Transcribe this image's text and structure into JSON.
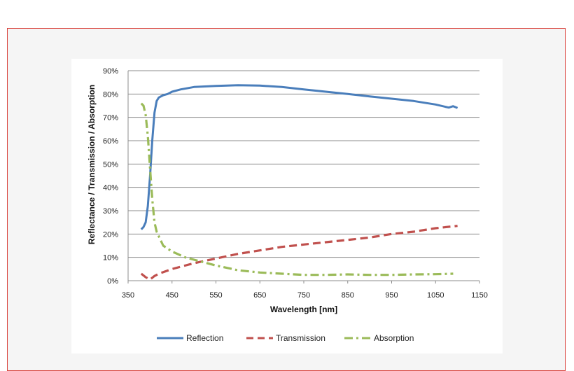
{
  "chart_data": {
    "type": "line",
    "title": "",
    "xlabel": "Wavelength [nm]",
    "ylabel": "Reflectance / Transmission / Absorption",
    "xlim": [
      350,
      1150
    ],
    "ylim": [
      0,
      90
    ],
    "xticks": [
      350,
      450,
      550,
      650,
      750,
      850,
      950,
      1050,
      1150
    ],
    "yticks": [
      0,
      10,
      20,
      30,
      40,
      50,
      60,
      70,
      80,
      90
    ],
    "ytick_suffix": "%",
    "grid": "horizontal",
    "legend_position": "bottom",
    "series": [
      {
        "name": "Reflection",
        "color": "#4a7ebb",
        "style": "solid",
        "x": [
          380,
          385,
          390,
          395,
          400,
          405,
          410,
          415,
          420,
          430,
          440,
          450,
          470,
          500,
          550,
          600,
          650,
          700,
          750,
          800,
          850,
          900,
          950,
          1000,
          1050,
          1080,
          1090,
          1100
        ],
        "y": [
          22,
          23,
          25,
          32,
          45,
          60,
          72,
          77,
          78.5,
          79.5,
          80,
          81,
          82,
          83,
          83.5,
          83.8,
          83.6,
          83,
          82,
          81,
          80,
          79,
          78,
          77,
          75.5,
          74.2,
          74.8,
          74
        ]
      },
      {
        "name": "Transmission",
        "color": "#c0504d",
        "style": "dashed",
        "x": [
          380,
          390,
          400,
          410,
          420,
          450,
          500,
          550,
          600,
          650,
          700,
          750,
          800,
          850,
          900,
          950,
          1000,
          1050,
          1100
        ],
        "y": [
          3,
          1.5,
          0.5,
          2,
          3,
          5,
          7.5,
          9.5,
          11.5,
          13,
          14.5,
          15.5,
          16.5,
          17.5,
          18.5,
          20,
          21,
          22.5,
          23.5
        ]
      },
      {
        "name": "Absorption",
        "color": "#9bbb59",
        "style": "dashdot",
        "x": [
          380,
          385,
          390,
          395,
          400,
          405,
          410,
          415,
          420,
          430,
          450,
          480,
          500,
          550,
          600,
          650,
          700,
          750,
          800,
          850,
          900,
          950,
          1000,
          1050,
          1090
        ],
        "y": [
          76,
          75,
          71,
          62,
          48,
          35,
          25,
          21,
          19,
          15,
          12.5,
          10,
          9,
          6.5,
          4.5,
          3.5,
          3,
          2.5,
          2.5,
          2.7,
          2.5,
          2.5,
          2.7,
          2.8,
          3
        ]
      }
    ]
  }
}
